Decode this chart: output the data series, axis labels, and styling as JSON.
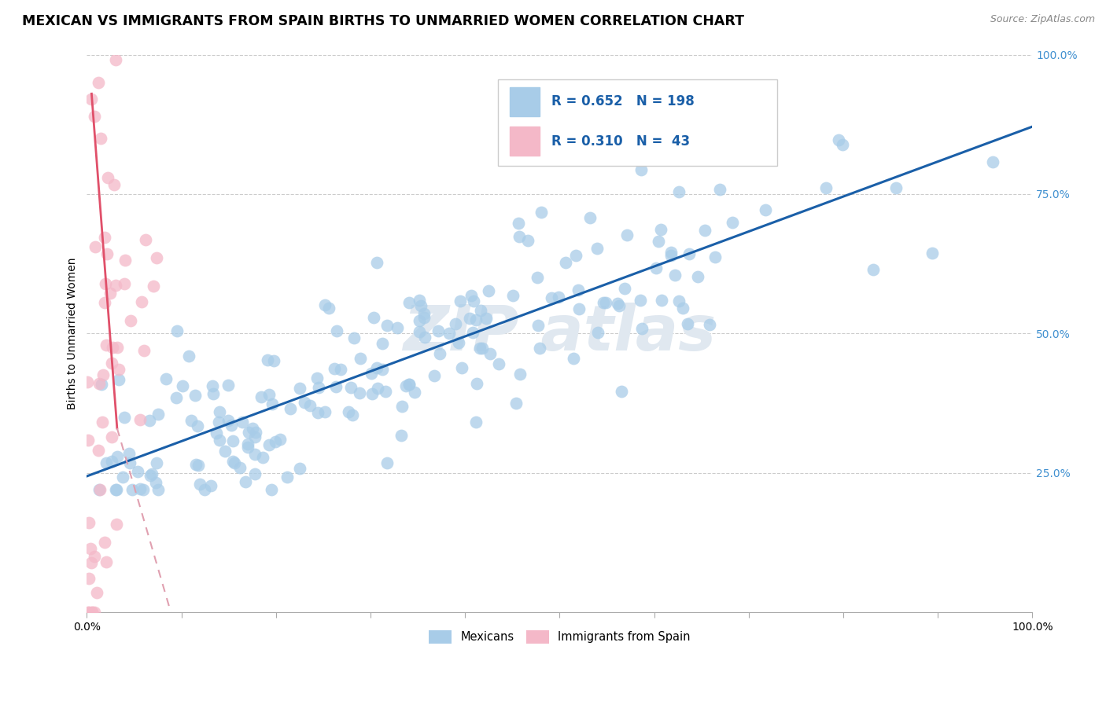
{
  "title": "MEXICAN VS IMMIGRANTS FROM SPAIN BIRTHS TO UNMARRIED WOMEN CORRELATION CHART",
  "source": "Source: ZipAtlas.com",
  "ylabel": "Births to Unmarried Women",
  "blue_R": 0.652,
  "blue_N": 198,
  "pink_R": 0.31,
  "pink_N": 43,
  "blue_color": "#a8cce8",
  "pink_color": "#f4b8c8",
  "blue_line_color": "#1a5fa8",
  "pink_line_color": "#e0506a",
  "pink_line_dash_color": "#e0a0b0",
  "title_fontsize": 12.5,
  "label_fontsize": 10,
  "tick_fontsize": 10,
  "background_color": "#ffffff",
  "watermark_color": "#e0e8f0",
  "legend_text_color": "#1a5fa8",
  "ytick_label_color": "#4090d0"
}
